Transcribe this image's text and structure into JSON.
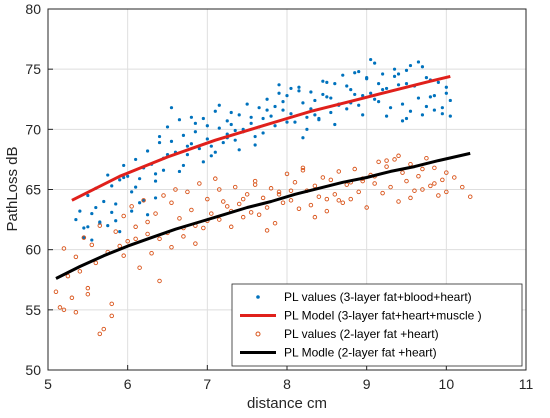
{
  "chart_data": {
    "type": "scatter",
    "title": "",
    "xlabel": "distance cm",
    "ylabel": "PathLoss dB",
    "xlim": [
      5,
      11
    ],
    "ylim": [
      50,
      80
    ],
    "xticks": [
      "5",
      "6",
      "7",
      "8",
      "9",
      "10",
      "11"
    ],
    "yticks": [
      "50",
      "55",
      "60",
      "65",
      "70",
      "75",
      "80"
    ],
    "grid": true,
    "legend_position": "bottom-right",
    "series": [
      {
        "name": "PL values (3-layer fat+blood+heart)",
        "kind": "scatter-dot",
        "color": "#0072bd",
        "x": [
          5.35,
          5.4,
          5.45,
          5.5,
          5.55,
          5.6,
          5.65,
          5.7,
          5.75,
          5.8,
          5.85,
          5.9,
          5.95,
          6.0,
          6.05,
          6.1,
          6.15,
          6.2,
          6.25,
          6.3,
          6.35,
          6.4,
          6.45,
          6.5,
          6.55,
          6.6,
          6.65,
          6.7,
          6.75,
          6.8,
          6.85,
          6.9,
          6.95,
          7.0,
          7.05,
          7.1,
          7.15,
          7.2,
          7.25,
          7.3,
          7.35,
          7.4,
          7.45,
          7.5,
          7.55,
          7.6,
          7.65,
          7.7,
          7.75,
          7.8,
          7.85,
          7.9,
          7.95,
          8.0,
          8.05,
          8.1,
          8.15,
          8.2,
          8.25,
          8.3,
          8.35,
          8.4,
          8.45,
          8.5,
          8.55,
          8.6,
          8.65,
          8.7,
          8.75,
          8.8,
          8.85,
          8.9,
          8.95,
          9.0,
          9.05,
          9.1,
          9.15,
          9.2,
          9.25,
          9.3,
          9.35,
          9.4,
          9.45,
          9.5,
          9.55,
          9.6,
          9.65,
          9.7,
          9.75,
          9.8,
          9.85,
          9.9,
          9.95,
          10.0,
          10.05,
          5.45,
          5.6,
          5.75,
          5.9,
          6.05,
          6.2,
          6.35,
          6.5,
          6.65,
          6.8,
          6.95,
          7.1,
          7.25,
          7.4,
          7.55,
          7.7,
          7.85,
          8.0,
          8.15,
          8.3,
          8.45,
          8.6,
          8.75,
          8.9,
          9.05,
          9.2,
          9.35,
          9.5,
          9.65,
          9.8,
          9.95,
          5.55,
          5.85,
          6.15,
          6.45,
          6.75,
          7.05,
          7.35,
          7.65,
          7.95,
          8.25,
          8.55,
          8.85,
          9.15,
          9.45,
          9.75,
          10.05,
          5.5,
          5.8,
          6.1,
          6.4,
          6.7,
          7.0,
          7.3,
          7.6,
          7.9,
          8.2,
          8.5,
          8.8,
          9.1,
          9.4,
          9.7,
          10.0,
          5.95,
          6.25,
          6.55,
          6.85,
          7.15,
          7.45,
          7.75,
          8.05,
          8.35,
          8.65,
          8.95,
          9.25,
          9.55,
          9.85,
          5.65,
          6.35,
          7.25,
          8.4,
          9.0,
          9.5
        ],
        "y": [
          62.5,
          63.2,
          61.8,
          64.5,
          63.0,
          65.1,
          62.3,
          64.0,
          66.2,
          65.3,
          63.8,
          61.5,
          67.0,
          66.1,
          64.8,
          67.5,
          65.9,
          66.8,
          68.2,
          67.1,
          66.3,
          68.9,
          67.6,
          70.2,
          69.0,
          68.1,
          70.8,
          69.5,
          67.9,
          71.0,
          69.8,
          68.4,
          70.9,
          69.2,
          68.6,
          71.5,
          70.1,
          68.9,
          69.6,
          70.4,
          69.1,
          71.2,
          70.0,
          72.1,
          70.5,
          69.4,
          71.8,
          70.9,
          72.5,
          71.1,
          70.3,
          73.0,
          71.6,
          72.8,
          71.3,
          70.6,
          73.5,
          72.2,
          71.0,
          73.1,
          72.4,
          70.8,
          74.0,
          72.7,
          71.4,
          73.8,
          72.0,
          74.5,
          71.7,
          73.3,
          72.9,
          74.8,
          71.2,
          74.2,
          73.0,
          75.5,
          72.3,
          74.6,
          73.4,
          71.8,
          75.0,
          73.7,
          72.1,
          74.9,
          71.5,
          73.6,
          72.6,
          75.2,
          71.9,
          74.1,
          72.8,
          73.9,
          71.3,
          73.5,
          72.4,
          61.0,
          63.5,
          62.0,
          65.8,
          63.2,
          64.1,
          65.7,
          67.9,
          66.5,
          68.8,
          67.3,
          68.1,
          70.7,
          68.3,
          71.0,
          69.7,
          71.9,
          70.6,
          73.2,
          71.7,
          72.9,
          70.4,
          73.6,
          72.0,
          75.8,
          73.3,
          74.4,
          70.9,
          75.6,
          72.7,
          71.8,
          60.8,
          62.4,
          63.9,
          66.6,
          68.6,
          67.8,
          69.9,
          70.2,
          72.3,
          70.0,
          72.6,
          74.7,
          73.8,
          70.7,
          74.3,
          71.1,
          61.9,
          63.1,
          65.2,
          69.4,
          67.0,
          70.3,
          71.4,
          68.7,
          73.7,
          69.3,
          73.9,
          72.2,
          72.5,
          74.6,
          71.2,
          73.0,
          66.0,
          62.9,
          71.8,
          70.5,
          72.0,
          69.8,
          71.6,
          73.4,
          71.2,
          72.1,
          72.8,
          71.1,
          75.3,
          71.6,
          62.2,
          64.3,
          69.3,
          70.9,
          74.3,
          73.8
        ]
      },
      {
        "name": "PL Model (3-layer fat+heart+muscle )",
        "kind": "line",
        "color": "#e0201b",
        "x": [
          5.3,
          5.6,
          5.9,
          6.2,
          6.5,
          6.8,
          7.1,
          7.4,
          7.7,
          8.0,
          8.3,
          8.6,
          8.9,
          9.2,
          9.5,
          9.8,
          10.05
        ],
        "y": [
          64.1,
          65.1,
          66.1,
          66.9,
          67.7,
          68.4,
          69.1,
          69.7,
          70.3,
          70.9,
          71.5,
          72.0,
          72.5,
          73.0,
          73.5,
          74.0,
          74.4
        ]
      },
      {
        "name": "PL values (2-layer fat +heart)",
        "kind": "scatter-circle",
        "color": "#d95319",
        "x": [
          5.1,
          5.15,
          5.2,
          5.25,
          5.3,
          5.35,
          5.4,
          5.45,
          5.5,
          5.55,
          5.6,
          5.65,
          5.7,
          5.75,
          5.8,
          5.85,
          5.9,
          5.95,
          6.0,
          6.05,
          6.1,
          6.15,
          6.2,
          6.25,
          6.3,
          6.35,
          6.4,
          6.45,
          6.5,
          6.55,
          6.6,
          6.65,
          6.7,
          6.75,
          6.8,
          6.85,
          6.9,
          6.95,
          7.0,
          7.05,
          7.1,
          7.15,
          7.2,
          7.25,
          7.3,
          7.35,
          7.4,
          7.45,
          7.5,
          7.55,
          7.6,
          7.65,
          7.7,
          7.75,
          7.8,
          7.85,
          7.9,
          7.95,
          8.0,
          8.05,
          8.1,
          8.15,
          8.2,
          8.25,
          8.3,
          8.35,
          8.4,
          8.45,
          8.5,
          8.55,
          8.6,
          8.65,
          8.7,
          8.75,
          8.8,
          8.85,
          8.9,
          8.95,
          9.0,
          9.05,
          9.1,
          9.15,
          9.2,
          9.25,
          9.3,
          9.35,
          9.4,
          9.45,
          9.5,
          9.55,
          9.6,
          9.65,
          9.7,
          9.75,
          9.8,
          9.85,
          9.9,
          9.95,
          10.0,
          10.1,
          10.2,
          10.3,
          5.2,
          5.5,
          5.8,
          6.1,
          6.4,
          6.7,
          7.0,
          7.3,
          7.6,
          7.9,
          8.2,
          8.5,
          8.8,
          9.1,
          9.4,
          9.7,
          10.0,
          5.35,
          5.65,
          5.95,
          6.25,
          6.55,
          6.85,
          7.15,
          7.45,
          7.75,
          8.05,
          8.35,
          8.65,
          8.95,
          9.25,
          9.55,
          9.85
        ],
        "y": [
          56.5,
          55.2,
          60.1,
          57.8,
          56.0,
          59.4,
          58.2,
          61.0,
          56.8,
          60.4,
          58.9,
          62.0,
          53.4,
          59.8,
          54.5,
          61.5,
          60.3,
          62.8,
          60.7,
          63.6,
          61.9,
          58.5,
          64.1,
          62.3,
          59.7,
          63.0,
          60.9,
          64.5,
          61.4,
          60.2,
          65.0,
          62.6,
          61.1,
          64.8,
          63.3,
          62.0,
          65.5,
          61.8,
          64.2,
          63.0,
          65.9,
          62.5,
          64.0,
          63.6,
          61.9,
          65.2,
          63.8,
          62.7,
          64.6,
          63.1,
          65.7,
          62.9,
          64.3,
          63.5,
          65.1,
          62.2,
          64.8,
          63.9,
          66.3,
          64.1,
          65.6,
          63.4,
          66.8,
          64.9,
          63.7,
          65.3,
          64.4,
          66.0,
          63.2,
          65.8,
          64.6,
          66.5,
          63.9,
          65.4,
          64.2,
          66.7,
          64.8,
          65.9,
          63.5,
          66.2,
          65.5,
          67.3,
          64.7,
          66.9,
          65.2,
          67.5,
          64.0,
          66.4,
          65.7,
          67.1,
          64.9,
          66.1,
          65.0,
          67.6,
          65.3,
          66.8,
          64.5,
          65.8,
          66.4,
          66.0,
          65.2,
          64.4,
          55.0,
          56.3,
          55.5,
          60.9,
          57.4,
          61.8,
          62.4,
          63.2,
          65.4,
          64.6,
          66.6,
          64.2,
          65.6,
          66.1,
          67.8,
          66.7,
          64.8,
          54.8,
          53.0,
          59.5,
          61.3,
          63.9,
          60.5,
          65.0,
          64.2,
          61.6,
          64.9,
          62.7,
          64.1,
          65.7,
          67.4,
          64.3,
          65.5
        ]
      },
      {
        "name": "PL Modle (2-layer fat +heart)",
        "kind": "line",
        "color": "#000000",
        "x": [
          5.1,
          5.4,
          5.7,
          6.0,
          6.3,
          6.6,
          6.9,
          7.2,
          7.5,
          7.8,
          8.1,
          8.4,
          8.7,
          9.0,
          9.3,
          9.6,
          9.9,
          10.3
        ],
        "y": [
          57.6,
          58.6,
          59.5,
          60.3,
          61.0,
          61.7,
          62.3,
          62.9,
          63.5,
          64.0,
          64.6,
          65.1,
          65.6,
          66.0,
          66.5,
          66.9,
          67.4,
          68.0
        ]
      }
    ]
  }
}
